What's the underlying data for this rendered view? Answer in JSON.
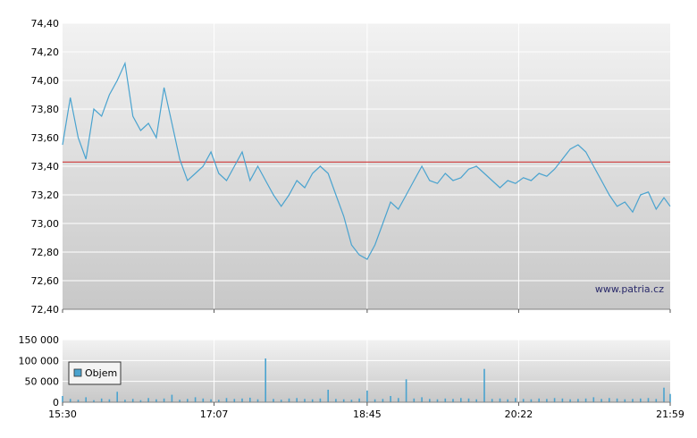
{
  "watermark": "www.patria.cz",
  "colors": {
    "price_line": "#4aa3cf",
    "reference_line": "#cc2222",
    "volume_bar": "#4aa3cf",
    "grid": "#ffffff",
    "plot_bg_top": "#f2f2f2",
    "plot_bg_bottom": "#c8c8c8"
  },
  "chart_data": [
    {
      "type": "line",
      "title": "",
      "xlabel": "",
      "ylabel": "",
      "x_ticks": [
        "15:30",
        "17:07",
        "18:45",
        "20:22",
        "21:59"
      ],
      "y_ticks": [
        "72,40",
        "72,60",
        "72,80",
        "73,00",
        "73,20",
        "73,40",
        "73,60",
        "73,80",
        "74,00",
        "74,20",
        "74,40"
      ],
      "ylim": [
        72.4,
        74.4
      ],
      "xlim": [
        "15:30",
        "21:59"
      ],
      "grid": true,
      "reference_line": 73.43,
      "series": [
        {
          "name": "",
          "x": [
            "15:30",
            "15:35",
            "15:40",
            "15:45",
            "15:50",
            "15:55",
            "16:00",
            "16:05",
            "16:10",
            "16:15",
            "16:20",
            "16:25",
            "16:30",
            "16:35",
            "16:40",
            "16:45",
            "16:50",
            "16:55",
            "17:00",
            "17:05",
            "17:10",
            "17:15",
            "17:20",
            "17:25",
            "17:30",
            "17:35",
            "17:40",
            "17:45",
            "17:50",
            "17:55",
            "18:00",
            "18:05",
            "18:10",
            "18:15",
            "18:20",
            "18:25",
            "18:30",
            "18:35",
            "18:40",
            "18:45",
            "18:50",
            "18:55",
            "19:00",
            "19:05",
            "19:10",
            "19:15",
            "19:20",
            "19:25",
            "19:30",
            "19:35",
            "19:40",
            "19:45",
            "19:50",
            "19:55",
            "20:00",
            "20:05",
            "20:10",
            "20:15",
            "20:20",
            "20:25",
            "20:30",
            "20:35",
            "20:40",
            "20:45",
            "20:50",
            "20:55",
            "21:00",
            "21:05",
            "21:10",
            "21:15",
            "21:20",
            "21:25",
            "21:30",
            "21:35",
            "21:40",
            "21:45",
            "21:50",
            "21:55",
            "21:59"
          ],
          "y": [
            73.55,
            73.88,
            73.6,
            73.45,
            73.8,
            73.75,
            73.9,
            74.0,
            74.12,
            73.75,
            73.65,
            73.7,
            73.6,
            73.95,
            73.7,
            73.45,
            73.3,
            73.35,
            73.4,
            73.5,
            73.35,
            73.3,
            73.4,
            73.5,
            73.3,
            73.4,
            73.3,
            73.2,
            73.12,
            73.2,
            73.3,
            73.25,
            73.35,
            73.4,
            73.35,
            73.2,
            73.05,
            72.85,
            72.78,
            72.75,
            72.85,
            73.0,
            73.15,
            73.1,
            73.2,
            73.3,
            73.4,
            73.3,
            73.28,
            73.35,
            73.3,
            73.32,
            73.38,
            73.4,
            73.35,
            73.3,
            73.25,
            73.3,
            73.28,
            73.32,
            73.3,
            73.35,
            73.33,
            73.38,
            73.45,
            73.52,
            73.55,
            73.5,
            73.4,
            73.3,
            73.2,
            73.12,
            73.15,
            73.08,
            73.2,
            73.22,
            73.1,
            73.18,
            73.12
          ]
        }
      ]
    },
    {
      "type": "bar",
      "title": "",
      "xlabel": "",
      "ylabel": "",
      "x_ticks": [
        "15:30",
        "17:07",
        "18:45",
        "20:22",
        "21:59"
      ],
      "y_ticks": [
        "0",
        "50 000",
        "100 000",
        "150 000"
      ],
      "ylim": [
        0,
        150000
      ],
      "xlim": [
        "15:30",
        "21:59"
      ],
      "grid": true,
      "legend": "top-left",
      "series": [
        {
          "name": "Objem",
          "x": [
            "15:30",
            "15:35",
            "15:40",
            "15:45",
            "15:50",
            "15:55",
            "16:00",
            "16:05",
            "16:10",
            "16:15",
            "16:20",
            "16:25",
            "16:30",
            "16:35",
            "16:40",
            "16:45",
            "16:50",
            "16:55",
            "17:00",
            "17:05",
            "17:10",
            "17:15",
            "17:20",
            "17:25",
            "17:30",
            "17:35",
            "17:40",
            "17:45",
            "17:50",
            "17:55",
            "18:00",
            "18:05",
            "18:10",
            "18:15",
            "18:20",
            "18:25",
            "18:30",
            "18:35",
            "18:40",
            "18:45",
            "18:50",
            "18:55",
            "19:00",
            "19:05",
            "19:10",
            "19:15",
            "19:20",
            "19:25",
            "19:30",
            "19:35",
            "19:40",
            "19:45",
            "19:50",
            "19:55",
            "20:00",
            "20:05",
            "20:10",
            "20:15",
            "20:20",
            "20:25",
            "20:30",
            "20:35",
            "20:40",
            "20:45",
            "20:50",
            "20:55",
            "21:00",
            "21:05",
            "21:10",
            "21:15",
            "21:20",
            "21:25",
            "21:30",
            "21:35",
            "21:40",
            "21:45",
            "21:50",
            "21:55",
            "21:59"
          ],
          "values": [
            15000,
            8000,
            6000,
            12000,
            5000,
            9000,
            7000,
            25000,
            6000,
            8000,
            5000,
            10000,
            7000,
            9000,
            18000,
            6000,
            8000,
            12000,
            9000,
            7000,
            6000,
            10000,
            8000,
            9000,
            11000,
            7000,
            105000,
            8000,
            6000,
            9000,
            10000,
            8000,
            7000,
            9000,
            30000,
            8000,
            7000,
            6000,
            9000,
            28000,
            7000,
            8000,
            15000,
            10000,
            55000,
            9000,
            12000,
            8000,
            7000,
            9000,
            8000,
            10000,
            9000,
            7000,
            80000,
            8000,
            9000,
            7000,
            10000,
            8000,
            7000,
            9000,
            8000,
            10000,
            9000,
            7000,
            8000,
            9000,
            12000,
            8000,
            10000,
            9000,
            7000,
            8000,
            9000,
            10000,
            8000,
            35000,
            20000
          ]
        }
      ]
    }
  ]
}
